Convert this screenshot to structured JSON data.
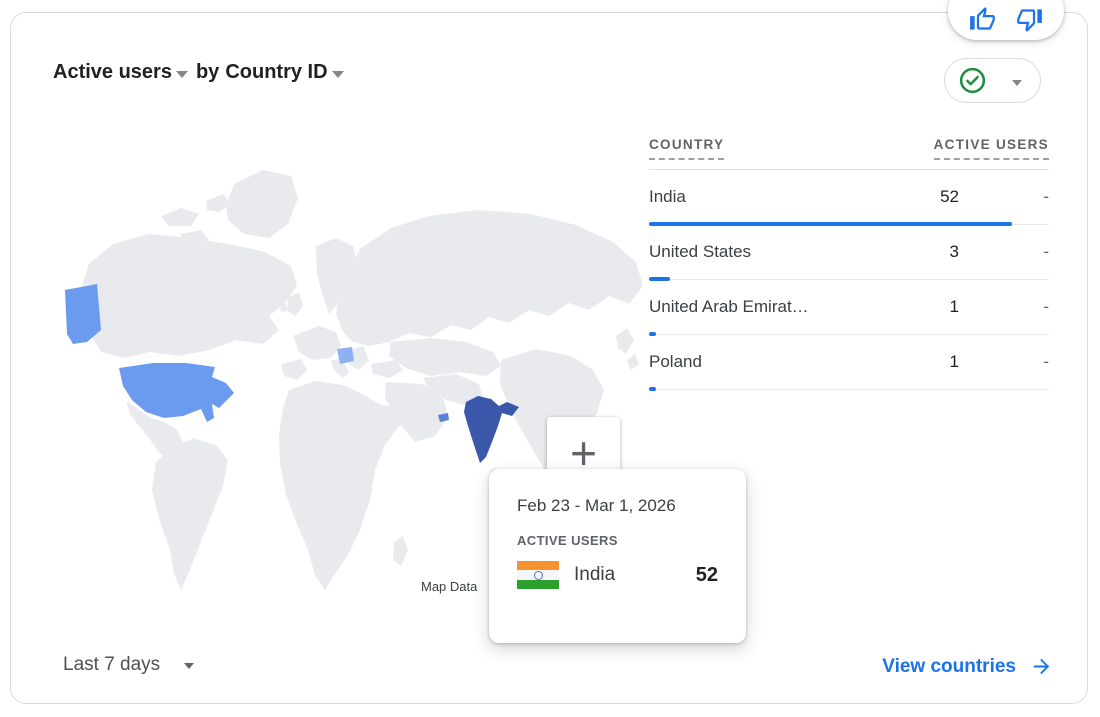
{
  "header": {
    "metric_label": "Active users",
    "connector": "by",
    "dimension_label": "Country ID"
  },
  "icons": {
    "feedback": [
      "thumbs-up-icon",
      "thumbs-down-icon"
    ],
    "status": "check-circle-icon",
    "selector_caret": "caret-down-icon",
    "link_arrow": "arrow-right-icon",
    "tooltip_flag": "india-flag-icon"
  },
  "table": {
    "columns": [
      "COUNTRY",
      "ACTIVE USERS"
    ],
    "rows": [
      {
        "country": "India",
        "active_users": "52",
        "delta": "-"
      },
      {
        "country": "United States",
        "active_users": "3",
        "delta": "-"
      },
      {
        "country": "United Arab Emirat…",
        "active_users": "1",
        "delta": "-"
      },
      {
        "country": "Poland",
        "active_users": "1",
        "delta": "-"
      }
    ]
  },
  "map": {
    "attribution": "Map Data",
    "zoom_in_glyph": "+",
    "colors": {
      "land": "#e9eaee",
      "united_states": "#6b9bee",
      "poland": "#8fb1f0",
      "united_arab_emirates": "#5b82d6",
      "india": "#3b57a9",
      "accent": "#1a73e8",
      "check_green": "#1e8e3e"
    }
  },
  "tooltip": {
    "date_range": "Feb 23 - Mar 1, 2026",
    "metric_label": "ACTIVE USERS",
    "country": "India",
    "value": "52"
  },
  "footer": {
    "date_range": "Last 7 days",
    "link_label": "View countries"
  }
}
